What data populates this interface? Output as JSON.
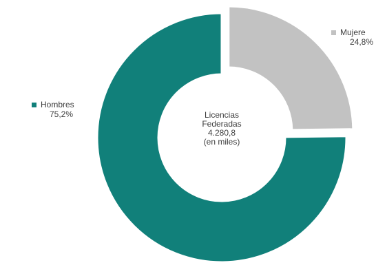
{
  "chart_data": {
    "type": "pie",
    "variant": "donut",
    "categories": [
      "Hombres",
      "Mujeres"
    ],
    "values": [
      75.2,
      24.8
    ],
    "value_labels": [
      "75,2%",
      "24,8%"
    ],
    "colors": [
      "#11807a",
      "#c2c2c2"
    ],
    "exploded": [
      false,
      true
    ],
    "center_text": [
      "Licencias",
      "Federadas",
      "4.280,8",
      "(en miles)"
    ],
    "legend_placement": "outside-labels"
  },
  "legend": {
    "hombres": {
      "label": "Hombres",
      "pct": "75,2%"
    },
    "mujeres": {
      "label": "Mujere",
      "pct": "24,8%"
    }
  }
}
